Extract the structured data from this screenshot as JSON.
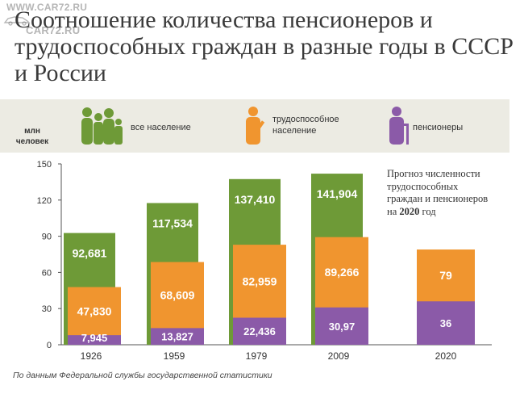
{
  "watermark": {
    "line1": "WWW.CAR72.RU",
    "line2": "CAR72.RU"
  },
  "title": "Соотношение количества пенсионеров и трудоспособных граждан в разные годы в СССР и России",
  "unit_label": {
    "line1": "млн",
    "line2": "человек"
  },
  "legend": [
    {
      "label": "все население",
      "color": "#6e9a37",
      "icon": "population-group-icon"
    },
    {
      "label_line1": "трудоспособное",
      "label_line2": "население",
      "color": "#f0952f",
      "icon": "worker-icon"
    },
    {
      "label": "пенсионеры",
      "color": "#8b5aa8",
      "icon": "pensioner-icon"
    }
  ],
  "note": {
    "line1": "Прогноз численности",
    "line2": "трудоспособных",
    "line3": "граждан и пенсионеров",
    "line4_prefix": "на",
    "line4_year": "2020",
    "line4_suffix": "год"
  },
  "source": "По данным Федеральной службы государственной статистики",
  "colors": {
    "total": "#6e9a37",
    "working": "#f0952f",
    "pensioners": "#8b5aa8",
    "axis": "#555555"
  },
  "chart_data": {
    "type": "bar",
    "categories": [
      "1926",
      "1959",
      "1979",
      "2009",
      "2020"
    ],
    "ylim": [
      0,
      150
    ],
    "yticks": [
      0,
      30,
      60,
      90,
      120,
      150
    ],
    "grid": false,
    "series": [
      {
        "name": "все население",
        "values": [
          92.681,
          117.534,
          137.41,
          141.904,
          null
        ],
        "labels": [
          "92,681",
          "117,534",
          "137,410",
          "141,904",
          ""
        ]
      },
      {
        "name": "трудоспособное население",
        "values": [
          47.83,
          68.609,
          82.959,
          89.266,
          79
        ],
        "labels": [
          "47,830",
          "68,609",
          "82,959",
          "89,266",
          "79"
        ]
      },
      {
        "name": "пенсионеры",
        "values": [
          7.945,
          13.827,
          22.436,
          30.97,
          36
        ],
        "labels": [
          "7,945",
          "13,827",
          "22,436",
          "30,97",
          "36"
        ]
      }
    ]
  }
}
